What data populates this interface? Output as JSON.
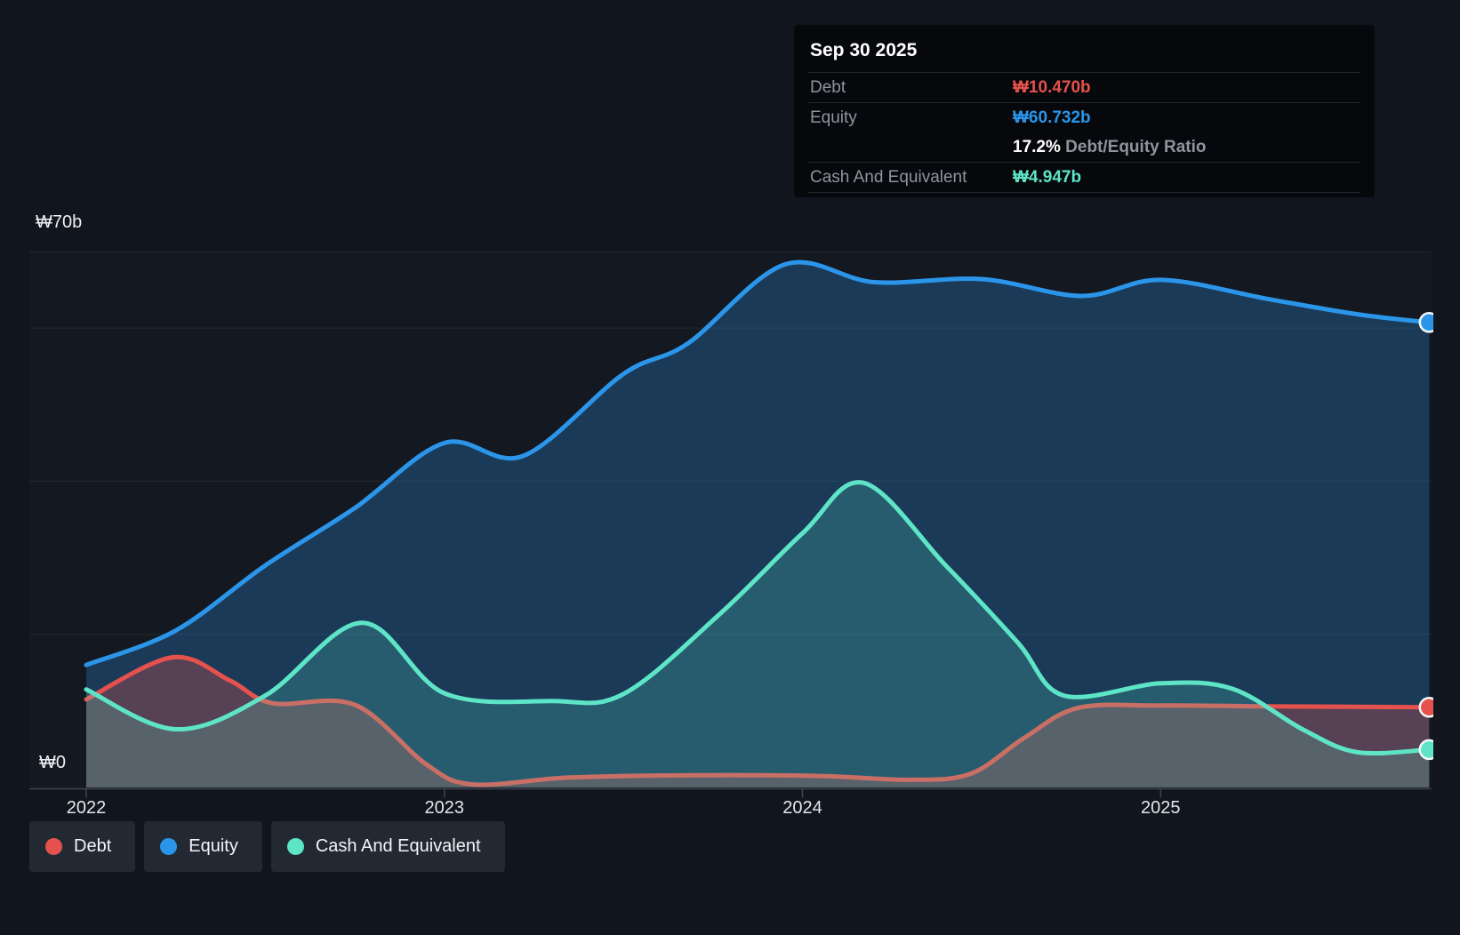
{
  "tooltip": {
    "date": "Sep 30 2025",
    "debt_label": "Debt",
    "debt_value": "₩10.470b",
    "equity_label": "Equity",
    "equity_value": "₩60.732b",
    "ratio_value": "17.2%",
    "ratio_label": " Debt/Equity Ratio",
    "cash_label": "Cash And Equivalent",
    "cash_value": "₩4.947b"
  },
  "axes": {
    "y_max": "₩70b",
    "y_min": "₩0",
    "years": [
      "2022",
      "2023",
      "2024",
      "2025"
    ]
  },
  "legend": {
    "items": [
      {
        "id": "debt",
        "label": "Debt",
        "color": "#e5524d"
      },
      {
        "id": "equity",
        "label": "Equity",
        "color": "#2b95e9"
      },
      {
        "id": "cash",
        "label": "Cash And Equivalent",
        "color": "#5ee4c6"
      }
    ]
  },
  "chart_data": {
    "type": "area",
    "title": "Debt to Equity History",
    "x_unit": "decimal year",
    "x_ticks": [
      2022,
      2023,
      2024,
      2025
    ],
    "x_range": [
      2022.0,
      2025.75
    ],
    "ylim": [
      0,
      70
    ],
    "y_gridlines_billions": [
      70,
      60,
      40,
      20,
      0
    ],
    "grid": true,
    "legend_position": "bottom-left",
    "end_date": "Sep 30 2025",
    "series": [
      {
        "name": "Equity",
        "id": "equity",
        "color": "#2b95e9",
        "fill_opacity": 0.28,
        "end_value_billions": 60.732,
        "points": [
          [
            2022.0,
            16.0
          ],
          [
            2022.25,
            20.5
          ],
          [
            2022.5,
            29.0
          ],
          [
            2022.75,
            36.5
          ],
          [
            2023.0,
            45.0
          ],
          [
            2023.22,
            43.3
          ],
          [
            2023.5,
            54.0
          ],
          [
            2023.68,
            58.0
          ],
          [
            2023.95,
            68.3
          ],
          [
            2024.2,
            66.0
          ],
          [
            2024.5,
            66.4
          ],
          [
            2024.78,
            64.2
          ],
          [
            2025.0,
            66.3
          ],
          [
            2025.3,
            63.8
          ],
          [
            2025.55,
            61.8
          ],
          [
            2025.75,
            60.732
          ]
        ]
      },
      {
        "name": "Debt",
        "id": "debt",
        "color": "#e5524d",
        "fill_opacity": 0.3,
        "end_value_billions": 10.47,
        "points": [
          [
            2022.0,
            11.5
          ],
          [
            2022.24,
            17.0
          ],
          [
            2022.4,
            14.0
          ],
          [
            2022.52,
            11.0
          ],
          [
            2022.75,
            10.8
          ],
          [
            2022.95,
            3.0
          ],
          [
            2023.08,
            0.4
          ],
          [
            2023.35,
            1.3
          ],
          [
            2023.7,
            1.6
          ],
          [
            2024.05,
            1.5
          ],
          [
            2024.3,
            1.0
          ],
          [
            2024.47,
            1.8
          ],
          [
            2024.62,
            6.5
          ],
          [
            2024.77,
            10.4
          ],
          [
            2025.0,
            10.7
          ],
          [
            2025.3,
            10.6
          ],
          [
            2025.75,
            10.47
          ]
        ]
      },
      {
        "name": "Cash And Equivalent",
        "id": "cash",
        "color": "#5ee4c6",
        "fill_opacity": 0.2,
        "end_value_billions": 4.947,
        "points": [
          [
            2022.0,
            12.8
          ],
          [
            2022.25,
            7.6
          ],
          [
            2022.5,
            12.0
          ],
          [
            2022.77,
            21.5
          ],
          [
            2023.0,
            12.3
          ],
          [
            2023.3,
            11.3
          ],
          [
            2023.5,
            12.2
          ],
          [
            2023.77,
            22.7
          ],
          [
            2024.0,
            33.2
          ],
          [
            2024.17,
            39.8
          ],
          [
            2024.4,
            29.0
          ],
          [
            2024.6,
            19.0
          ],
          [
            2024.73,
            12.0
          ],
          [
            2025.0,
            13.6
          ],
          [
            2025.2,
            12.9
          ],
          [
            2025.4,
            7.5
          ],
          [
            2025.55,
            4.6
          ],
          [
            2025.75,
            4.947
          ]
        ]
      }
    ]
  }
}
